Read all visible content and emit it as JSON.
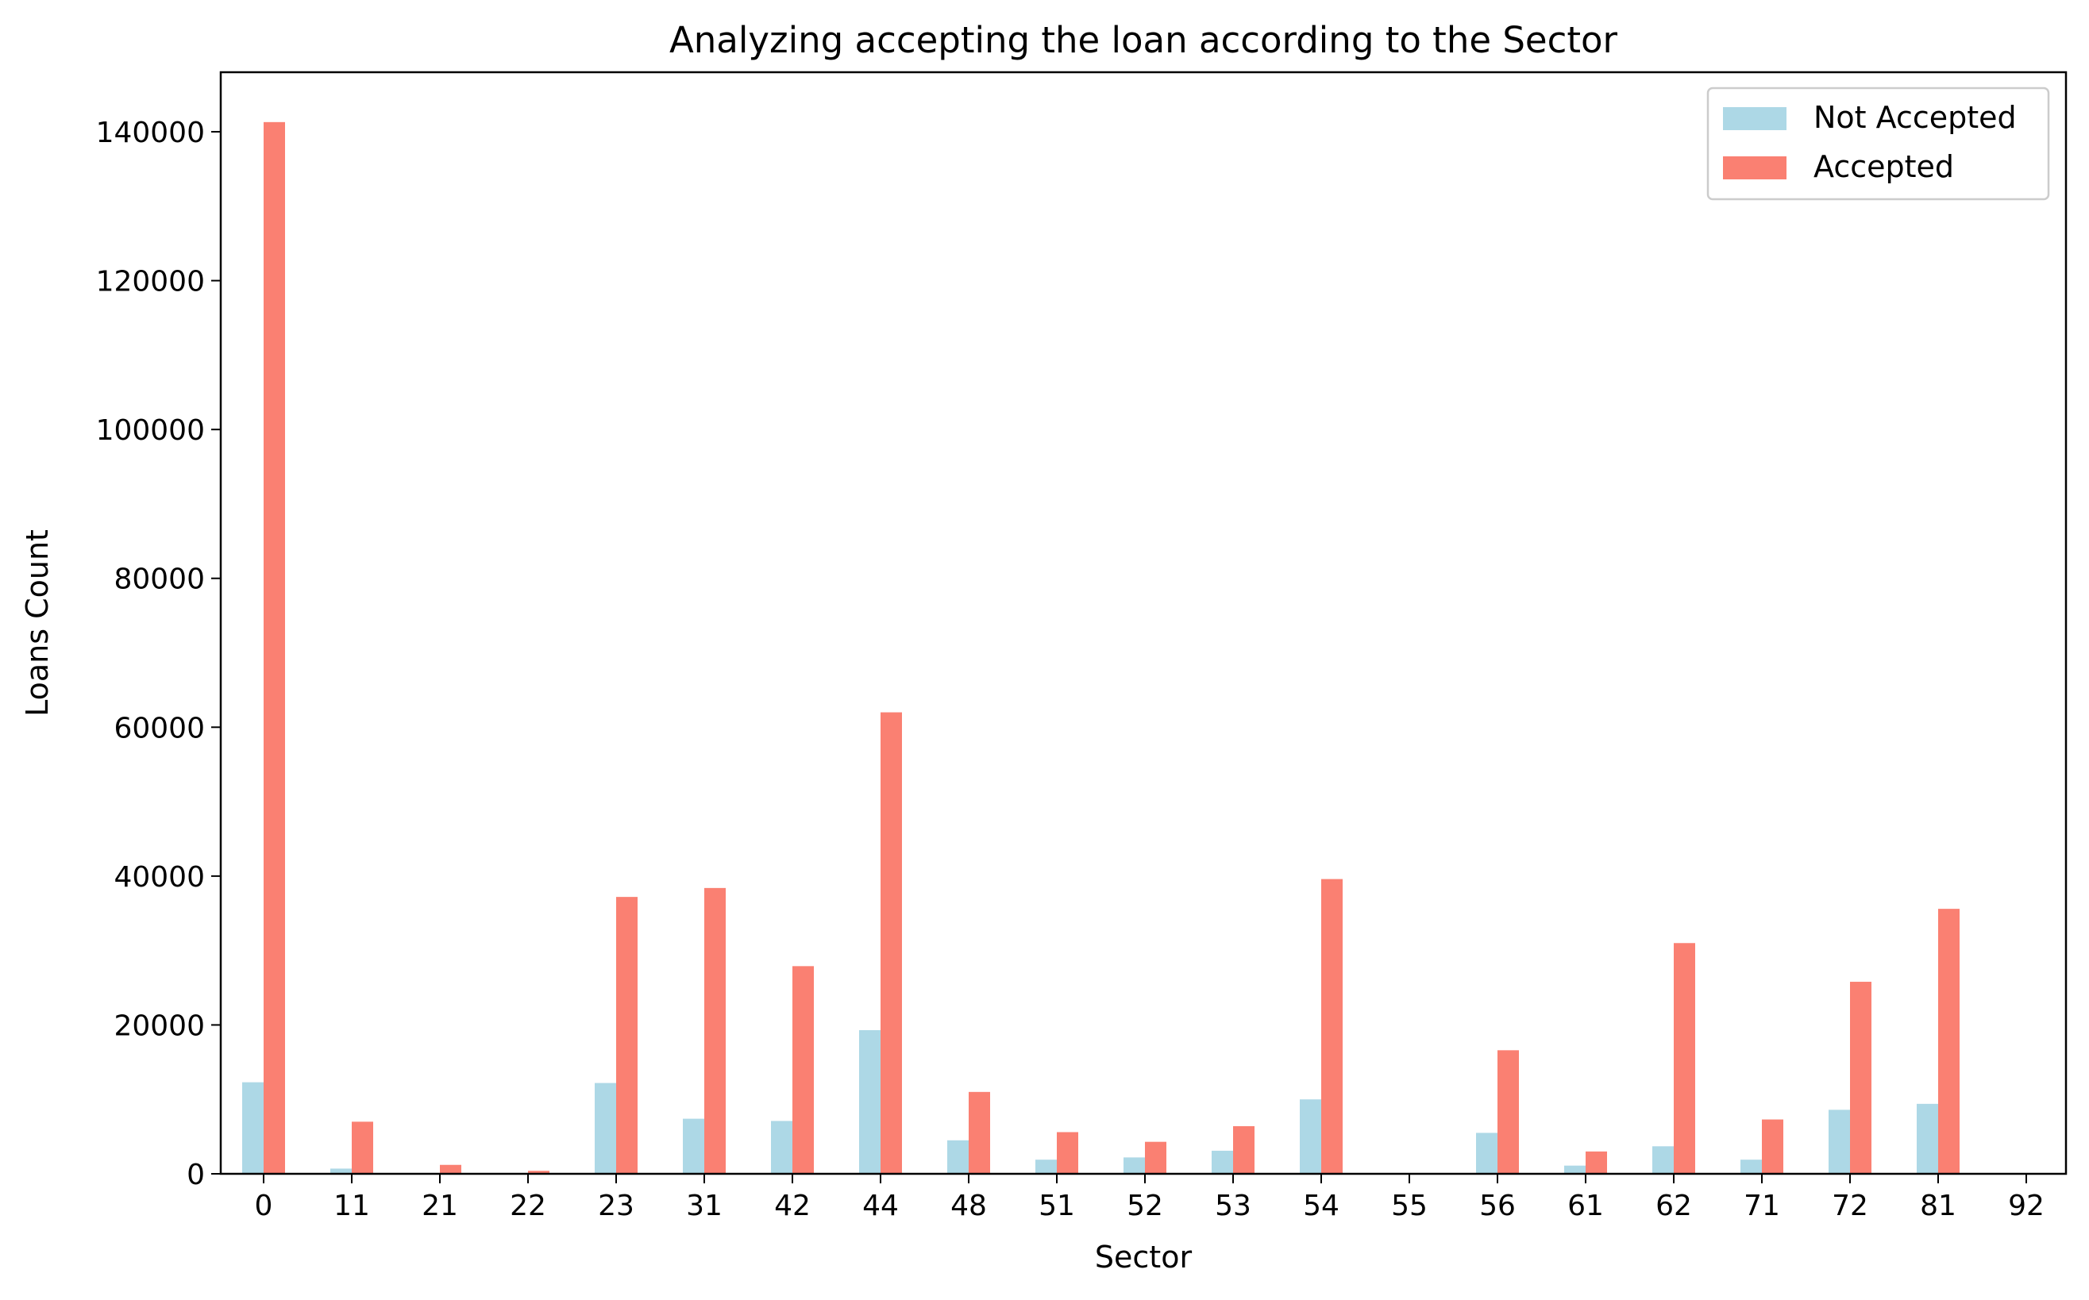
{
  "chart_data": {
    "type": "bar",
    "title": "Analyzing accepting the loan according to the Sector",
    "xlabel": "Sector",
    "ylabel": "Loans Count",
    "categories": [
      "0",
      "11",
      "21",
      "22",
      "23",
      "31",
      "42",
      "44",
      "48",
      "51",
      "52",
      "53",
      "54",
      "55",
      "56",
      "61",
      "62",
      "71",
      "72",
      "81",
      "92"
    ],
    "series": [
      {
        "name": "Not Accepted",
        "color": "#add8e6",
        "values": [
          12300,
          700,
          50,
          30,
          12200,
          7400,
          7100,
          19300,
          4500,
          1900,
          2200,
          3100,
          10000,
          0,
          5500,
          1100,
          3700,
          1900,
          8600,
          9400,
          0
        ]
      },
      {
        "name": "Accepted",
        "color": "#fa8072",
        "values": [
          141300,
          7000,
          1200,
          400,
          37200,
          38400,
          27900,
          62000,
          11000,
          5600,
          4300,
          6400,
          39600,
          0,
          16600,
          3000,
          31000,
          7300,
          25800,
          35600,
          0
        ]
      }
    ],
    "ylim": [
      0,
      148000
    ],
    "yticks": [
      0,
      20000,
      40000,
      60000,
      80000,
      100000,
      120000,
      140000
    ],
    "grid": false,
    "legend_position": "top-right"
  }
}
